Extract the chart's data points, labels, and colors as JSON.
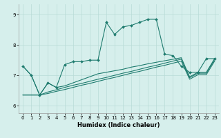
{
  "xlabel": "Humidex (Indice chaleur)",
  "bg_color": "#d6efec",
  "grid_color": "#b8dbd7",
  "line_color": "#1e7b6e",
  "xlim": [
    -0.5,
    23.5
  ],
  "ylim": [
    5.75,
    9.35
  ],
  "yticks": [
    6,
    7,
    8,
    9
  ],
  "xticks": [
    0,
    1,
    2,
    3,
    4,
    5,
    6,
    7,
    8,
    9,
    10,
    11,
    12,
    13,
    14,
    15,
    16,
    17,
    18,
    19,
    20,
    21,
    22,
    23
  ],
  "line1_x": [
    0,
    1,
    2,
    3,
    4,
    5,
    6,
    7,
    8,
    9,
    10,
    11,
    12,
    13,
    14,
    15,
    16,
    17,
    18,
    19,
    20,
    21,
    22,
    23
  ],
  "line1_y": [
    7.3,
    7.0,
    6.35,
    6.75,
    6.6,
    7.35,
    7.45,
    7.45,
    7.5,
    7.5,
    8.75,
    8.35,
    8.6,
    8.65,
    8.75,
    8.85,
    8.85,
    7.7,
    7.65,
    7.3,
    7.1,
    7.1,
    7.55,
    7.55
  ],
  "line2_x": [
    0,
    1,
    2,
    3,
    4,
    5,
    6,
    7,
    8,
    9,
    10,
    11,
    12,
    13,
    14,
    15,
    16,
    17,
    18,
    19,
    20,
    21,
    22,
    23
  ],
  "line2_y": [
    7.3,
    7.0,
    6.35,
    6.75,
    6.6,
    6.65,
    6.75,
    6.85,
    6.95,
    7.05,
    7.1,
    7.15,
    7.2,
    7.27,
    7.32,
    7.38,
    7.43,
    7.48,
    7.53,
    7.58,
    6.95,
    7.1,
    7.1,
    7.55
  ],
  "line3_x": [
    0,
    1,
    2,
    3,
    4,
    5,
    6,
    7,
    8,
    9,
    10,
    11,
    12,
    13,
    14,
    15,
    16,
    17,
    18,
    19,
    20,
    21,
    22,
    23
  ],
  "line3_y": [
    6.35,
    6.35,
    6.35,
    6.45,
    6.52,
    6.6,
    6.67,
    6.73,
    6.8,
    6.87,
    6.93,
    7.0,
    7.07,
    7.13,
    7.2,
    7.27,
    7.33,
    7.4,
    7.47,
    7.53,
    6.92,
    7.07,
    7.07,
    7.52
  ],
  "line4_x": [
    0,
    1,
    2,
    3,
    4,
    5,
    6,
    7,
    8,
    9,
    10,
    11,
    12,
    13,
    14,
    15,
    16,
    17,
    18,
    19,
    20,
    21,
    22,
    23
  ],
  "line4_y": [
    6.35,
    6.35,
    6.35,
    6.4,
    6.47,
    6.53,
    6.6,
    6.67,
    6.73,
    6.8,
    6.87,
    6.93,
    7.0,
    7.07,
    7.13,
    7.2,
    7.27,
    7.33,
    7.4,
    7.47,
    6.87,
    7.02,
    7.02,
    7.47
  ]
}
